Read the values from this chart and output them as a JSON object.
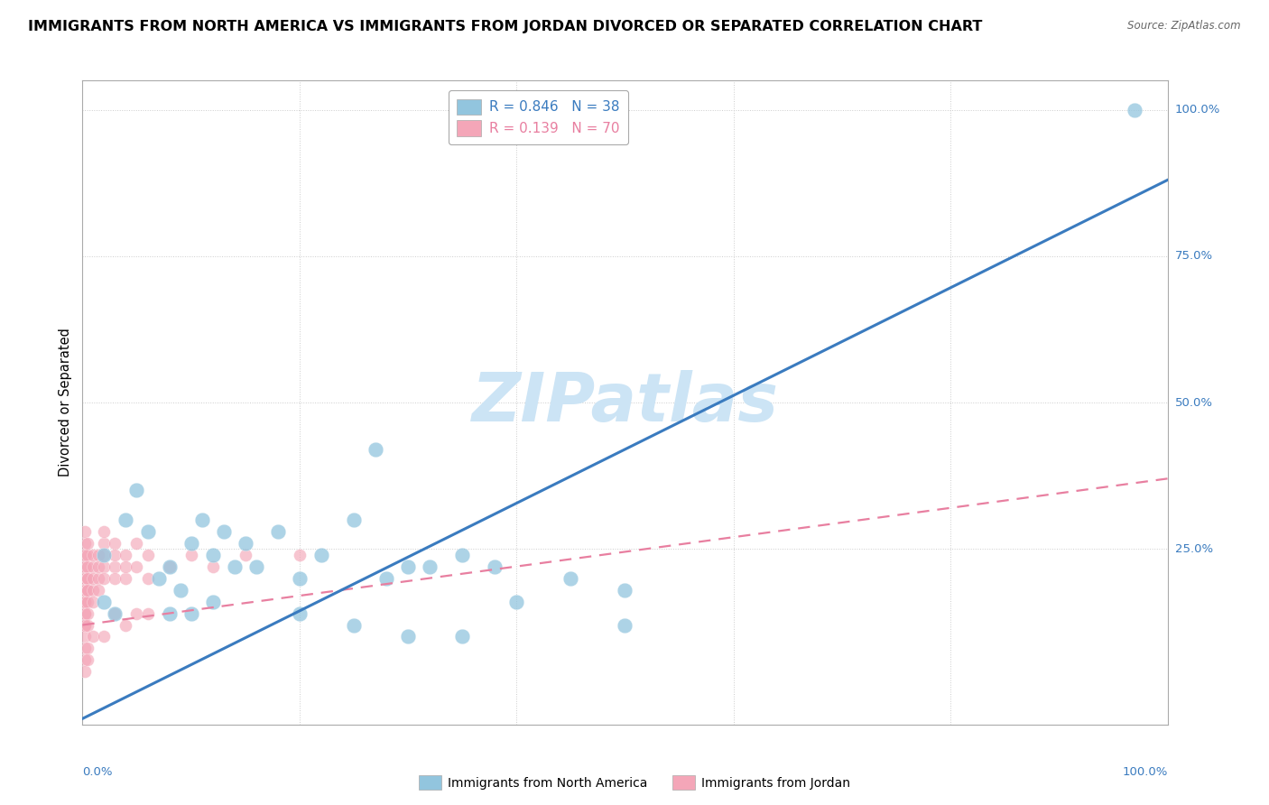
{
  "title": "IMMIGRANTS FROM NORTH AMERICA VS IMMIGRANTS FROM JORDAN DIVORCED OR SEPARATED CORRELATION CHART",
  "source": "Source: ZipAtlas.com",
  "ylabel": "Divorced or Separated",
  "legend_label1": "Immigrants from North America",
  "legend_label2": "Immigrants from Jordan",
  "r1": "0.846",
  "n1": "38",
  "r2": "0.139",
  "n2": "70",
  "blue_color": "#92c5de",
  "pink_color": "#f4a6b8",
  "blue_line_color": "#3a7bbf",
  "pink_line_color": "#e87fa0",
  "watermark_color": "#cce4f5",
  "grid_color": "#cccccc",
  "xlim": [
    0,
    100
  ],
  "ylim": [
    -5,
    105
  ],
  "ytick_pcts": [
    0,
    25,
    50,
    75,
    100
  ],
  "xtick_pcts": [
    0,
    20,
    40,
    60,
    80,
    100
  ],
  "blue_trend_x": [
    0,
    100
  ],
  "blue_trend_y": [
    -4,
    88
  ],
  "pink_trend_x": [
    0,
    100
  ],
  "pink_trend_y": [
    12,
    37
  ],
  "blue_points": [
    [
      97,
      100
    ],
    [
      2,
      24
    ],
    [
      4,
      30
    ],
    [
      5,
      35
    ],
    [
      6,
      28
    ],
    [
      7,
      20
    ],
    [
      8,
      22
    ],
    [
      9,
      18
    ],
    [
      10,
      26
    ],
    [
      11,
      30
    ],
    [
      12,
      24
    ],
    [
      13,
      28
    ],
    [
      14,
      22
    ],
    [
      15,
      26
    ],
    [
      16,
      22
    ],
    [
      18,
      28
    ],
    [
      20,
      20
    ],
    [
      22,
      24
    ],
    [
      25,
      30
    ],
    [
      27,
      42
    ],
    [
      28,
      20
    ],
    [
      30,
      22
    ],
    [
      32,
      22
    ],
    [
      35,
      24
    ],
    [
      38,
      22
    ],
    [
      40,
      16
    ],
    [
      45,
      20
    ],
    [
      50,
      18
    ],
    [
      2,
      16
    ],
    [
      3,
      14
    ],
    [
      8,
      14
    ],
    [
      10,
      14
    ],
    [
      12,
      16
    ],
    [
      20,
      14
    ],
    [
      25,
      12
    ],
    [
      30,
      10
    ],
    [
      35,
      10
    ],
    [
      50,
      12
    ]
  ],
  "pink_points": [
    [
      0.2,
      18
    ],
    [
      0.2,
      22
    ],
    [
      0.2,
      16
    ],
    [
      0.2,
      20
    ],
    [
      0.2,
      14
    ],
    [
      0.2,
      24
    ],
    [
      0.2,
      12
    ],
    [
      0.2,
      26
    ],
    [
      0.2,
      18
    ],
    [
      0.2,
      16
    ],
    [
      0.2,
      22
    ],
    [
      0.2,
      14
    ],
    [
      0.2,
      20
    ],
    [
      0.2,
      24
    ],
    [
      0.2,
      10
    ],
    [
      0.2,
      8
    ],
    [
      0.2,
      28
    ],
    [
      0.2,
      16
    ],
    [
      0.2,
      18
    ],
    [
      0.2,
      12
    ],
    [
      0.5,
      20
    ],
    [
      0.5,
      24
    ],
    [
      0.5,
      18
    ],
    [
      0.5,
      22
    ],
    [
      0.5,
      16
    ],
    [
      0.5,
      26
    ],
    [
      0.5,
      14
    ],
    [
      0.5,
      20
    ],
    [
      0.5,
      12
    ],
    [
      0.5,
      18
    ],
    [
      1.0,
      22
    ],
    [
      1.0,
      18
    ],
    [
      1.0,
      24
    ],
    [
      1.0,
      20
    ],
    [
      1.0,
      16
    ],
    [
      1.5,
      24
    ],
    [
      1.5,
      20
    ],
    [
      1.5,
      18
    ],
    [
      1.5,
      22
    ],
    [
      2.0,
      26
    ],
    [
      2.0,
      22
    ],
    [
      2.0,
      20
    ],
    [
      2.0,
      24
    ],
    [
      2.0,
      28
    ],
    [
      3.0,
      22
    ],
    [
      3.0,
      26
    ],
    [
      3.0,
      20
    ],
    [
      3.0,
      24
    ],
    [
      4.0,
      24
    ],
    [
      4.0,
      20
    ],
    [
      4.0,
      22
    ],
    [
      5.0,
      26
    ],
    [
      5.0,
      22
    ],
    [
      6.0,
      24
    ],
    [
      6.0,
      20
    ],
    [
      8.0,
      22
    ],
    [
      10.0,
      24
    ],
    [
      12.0,
      22
    ],
    [
      15.0,
      24
    ],
    [
      20.0,
      24
    ],
    [
      0.2,
      6
    ],
    [
      0.2,
      4
    ],
    [
      0.5,
      8
    ],
    [
      0.5,
      6
    ],
    [
      1.0,
      10
    ],
    [
      2.0,
      10
    ],
    [
      3.0,
      14
    ],
    [
      4.0,
      12
    ],
    [
      5.0,
      14
    ],
    [
      6.0,
      14
    ]
  ]
}
